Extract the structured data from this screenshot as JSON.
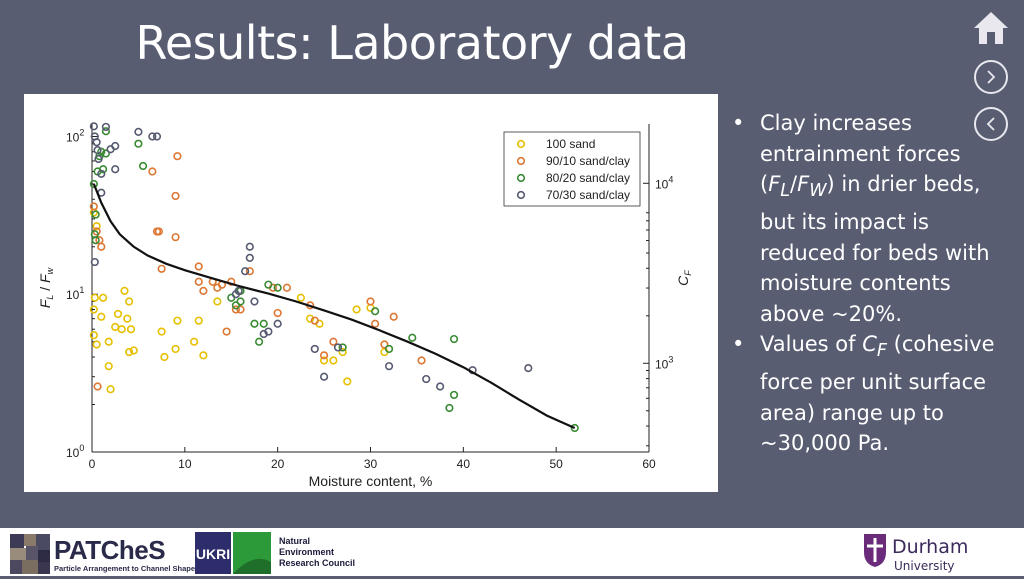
{
  "slide": {
    "title": "Results: Laboratory data",
    "bullets": [
      {
        "html": "Clay increases entrainment forces (<i>F<sub>L</sub></i>/<i>F<sub>W</sub></i>) in drier beds, but its impact is reduced for beds with moisture contents above ~20%."
      },
      {
        "html": "Values of <i>C<sub>F</sub></i> (cohesive force per unit surface area) range up to ~30,000 Pa."
      }
    ]
  },
  "nav": {
    "home_icon": "home-icon",
    "next_icon": "chevron-right-icon",
    "prev_icon": "chevron-left-icon"
  },
  "footer": {
    "patches_name": "PATCheS",
    "patches_sub": "Particle Arrangement to Channel Shape",
    "ukri_name": "UKRI",
    "nerc_lines": [
      "Natural",
      "Environment",
      "Research Council"
    ],
    "durham_name": "Durham",
    "durham_sub": "University"
  },
  "chart_data": {
    "type": "scatter",
    "xlabel": "Moisture content, %",
    "ylabel_left": "F_L / F_w",
    "ylabel_right": "C_F",
    "xlim": [
      0,
      60
    ],
    "xticks": [
      "0",
      "10",
      "20",
      "30",
      "40",
      "50",
      "60"
    ],
    "ylim_log": [
      1,
      120
    ],
    "yticks_left": [
      {
        "v": 1,
        "label": "10",
        "exp": "0"
      },
      {
        "v": 10,
        "label": "10",
        "exp": "1"
      },
      {
        "v": 100,
        "label": "10",
        "exp": "2"
      }
    ],
    "yticks_right": [
      {
        "v": 3.65,
        "label": "10",
        "exp": "3"
      },
      {
        "v": 50.5,
        "label": "10",
        "exp": "4"
      }
    ],
    "legend_position": "top-right",
    "series": [
      {
        "name": "100 sand",
        "color": "#e6c000",
        "points": [
          [
            0.2,
            33
          ],
          [
            0.5,
            27
          ],
          [
            0.3,
            9.5
          ],
          [
            0.2,
            8
          ],
          [
            0.2,
            5.5
          ],
          [
            0.5,
            4.8
          ],
          [
            1.0,
            7.2
          ],
          [
            1.2,
            9.5
          ],
          [
            1.8,
            5.0
          ],
          [
            1.8,
            3.5
          ],
          [
            2.0,
            2.5
          ],
          [
            2.5,
            6.2
          ],
          [
            2.8,
            7.5
          ],
          [
            3.2,
            6.0
          ],
          [
            3.5,
            10.5
          ],
          [
            3.8,
            7.0
          ],
          [
            4.0,
            4.3
          ],
          [
            4.0,
            9.0
          ],
          [
            4.2,
            6.0
          ],
          [
            4.5,
            4.4
          ],
          [
            7.5,
            5.8
          ],
          [
            7.8,
            4.0
          ],
          [
            9.0,
            4.5
          ],
          [
            9.2,
            6.8
          ],
          [
            11.0,
            5.0
          ],
          [
            11.5,
            6.8
          ],
          [
            12.0,
            4.1
          ],
          [
            13.5,
            9.0
          ],
          [
            22.5,
            9.5
          ],
          [
            23.5,
            7.0
          ],
          [
            24.5,
            6.5
          ],
          [
            25.0,
            3.8
          ],
          [
            26.0,
            3.8
          ],
          [
            27.0,
            4.3
          ],
          [
            27.5,
            2.8
          ],
          [
            28.5,
            8.0
          ],
          [
            30.0,
            8.2
          ],
          [
            31.5,
            4.3
          ]
        ]
      },
      {
        "name": "90/10 sand/clay",
        "color": "#dd7733",
        "points": [
          [
            0.2,
            36
          ],
          [
            0.5,
            25
          ],
          [
            0.8,
            22
          ],
          [
            1.0,
            20
          ],
          [
            0.6,
            2.6
          ],
          [
            6.5,
            60
          ],
          [
            7.0,
            25
          ],
          [
            7.2,
            25
          ],
          [
            7.5,
            14.5
          ],
          [
            9.0,
            23
          ],
          [
            9.0,
            42
          ],
          [
            9.2,
            75
          ],
          [
            11.5,
            12
          ],
          [
            11.5,
            15
          ],
          [
            12.0,
            10.5
          ],
          [
            13.0,
            12
          ],
          [
            13.5,
            11
          ],
          [
            14.0,
            11.5
          ],
          [
            14.5,
            5.8
          ],
          [
            15.0,
            12
          ],
          [
            15.5,
            8.0
          ],
          [
            16.0,
            8.0
          ],
          [
            17.0,
            14
          ],
          [
            19.5,
            11
          ],
          [
            20.0,
            7.6
          ],
          [
            21.0,
            11
          ],
          [
            23.5,
            8.5
          ],
          [
            24.0,
            6.8
          ],
          [
            25.0,
            4.1
          ],
          [
            26.0,
            5.0
          ],
          [
            30.0,
            9.0
          ],
          [
            30.5,
            6.5
          ],
          [
            31.5,
            4.8
          ],
          [
            32.5,
            7.2
          ],
          [
            35.5,
            3.8
          ]
        ]
      },
      {
        "name": "80/20 sand/clay",
        "color": "#3a8a33",
        "points": [
          [
            0.2,
            50
          ],
          [
            0.4,
            32
          ],
          [
            0.3,
            24
          ],
          [
            0.4,
            22
          ],
          [
            0.6,
            60
          ],
          [
            0.8,
            75
          ],
          [
            1.0,
            80
          ],
          [
            1.2,
            62
          ],
          [
            1.5,
            78
          ],
          [
            1.5,
            108
          ],
          [
            5.0,
            90
          ],
          [
            5.5,
            65
          ],
          [
            15.0,
            9.5
          ],
          [
            15.5,
            8.5
          ],
          [
            16.0,
            9.0
          ],
          [
            16.0,
            10.5
          ],
          [
            17.5,
            6.5
          ],
          [
            18.0,
            5.0
          ],
          [
            18.5,
            6.5
          ],
          [
            19.0,
            11.5
          ],
          [
            20.0,
            11.0
          ],
          [
            27.0,
            4.6
          ],
          [
            30.5,
            7.8
          ],
          [
            32.0,
            4.5
          ],
          [
            34.5,
            5.3
          ],
          [
            38.5,
            1.9
          ],
          [
            39.0,
            2.3
          ],
          [
            39.0,
            5.2
          ],
          [
            52.0,
            1.42
          ]
        ]
      },
      {
        "name": "70/30 sand/clay",
        "color": "#555a70",
        "points": [
          [
            0.2,
            116
          ],
          [
            0.3,
            100
          ],
          [
            0.5,
            92
          ],
          [
            0.6,
            82
          ],
          [
            0.7,
            72
          ],
          [
            1.0,
            58
          ],
          [
            1.0,
            44
          ],
          [
            0.3,
            16
          ],
          [
            1.5,
            115
          ],
          [
            2.5,
            87
          ],
          [
            2.0,
            83
          ],
          [
            2.5,
            62
          ],
          [
            5.0,
            107
          ],
          [
            6.5,
            100
          ],
          [
            7.0,
            100
          ],
          [
            15.5,
            10
          ],
          [
            15.8,
            10.5
          ],
          [
            16.5,
            14
          ],
          [
            17.0,
            20
          ],
          [
            17.0,
            17
          ],
          [
            17.5,
            9.0
          ],
          [
            18.5,
            5.6
          ],
          [
            19.0,
            5.8
          ],
          [
            20.0,
            6.5
          ],
          [
            24.0,
            4.5
          ],
          [
            25.0,
            3.0
          ],
          [
            26.5,
            4.6
          ],
          [
            32.0,
            3.5
          ],
          [
            36.0,
            2.9
          ],
          [
            37.5,
            2.6
          ],
          [
            41.0,
            3.3
          ],
          [
            47.0,
            3.4
          ]
        ]
      }
    ],
    "fit_curve": [
      [
        0.2,
        50
      ],
      [
        1,
        38
      ],
      [
        2,
        29
      ],
      [
        3,
        24
      ],
      [
        4.5,
        20
      ],
      [
        6,
        17.6
      ],
      [
        8,
        15.6
      ],
      [
        10,
        14.2
      ],
      [
        13,
        12.6
      ],
      [
        16,
        11.2
      ],
      [
        19,
        10.1
      ],
      [
        22,
        9.0
      ],
      [
        25,
        7.9
      ],
      [
        28,
        6.9
      ],
      [
        31,
        5.9
      ],
      [
        34,
        5.0
      ],
      [
        37,
        4.2
      ],
      [
        40,
        3.45
      ],
      [
        43,
        2.75
      ],
      [
        46,
        2.15
      ],
      [
        49,
        1.7
      ],
      [
        52,
        1.42
      ]
    ]
  }
}
